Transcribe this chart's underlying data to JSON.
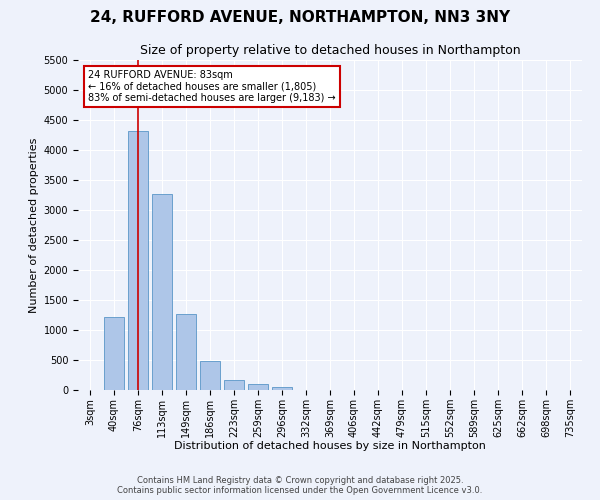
{
  "title": "24, RUFFORD AVENUE, NORTHAMPTON, NN3 3NY",
  "subtitle": "Size of property relative to detached houses in Northampton",
  "xlabel": "Distribution of detached houses by size in Northampton",
  "ylabel": "Number of detached properties",
  "categories": [
    "3sqm",
    "40sqm",
    "76sqm",
    "113sqm",
    "149sqm",
    "186sqm",
    "223sqm",
    "259sqm",
    "296sqm",
    "332sqm",
    "369sqm",
    "406sqm",
    "442sqm",
    "479sqm",
    "515sqm",
    "552sqm",
    "589sqm",
    "625sqm",
    "662sqm",
    "698sqm",
    "735sqm"
  ],
  "values": [
    0,
    1220,
    4310,
    3270,
    1260,
    490,
    175,
    95,
    55,
    0,
    0,
    0,
    0,
    0,
    0,
    0,
    0,
    0,
    0,
    0,
    0
  ],
  "bar_color": "#aec6e8",
  "bar_edge_color": "#5a96c8",
  "vline_x": 2,
  "vline_color": "#cc0000",
  "annotation_text": "24 RUFFORD AVENUE: 83sqm\n← 16% of detached houses are smaller (1,805)\n83% of semi-detached houses are larger (9,183) →",
  "annotation_box_color": "#ffffff",
  "annotation_box_edge": "#cc0000",
  "ylim": [
    0,
    5500
  ],
  "yticks": [
    0,
    500,
    1000,
    1500,
    2000,
    2500,
    3000,
    3500,
    4000,
    4500,
    5000,
    5500
  ],
  "footer_line1": "Contains HM Land Registry data © Crown copyright and database right 2025.",
  "footer_line2": "Contains public sector information licensed under the Open Government Licence v3.0.",
  "bg_color": "#eef2fb",
  "plot_bg_color": "#eef2fb",
  "title_fontsize": 11,
  "subtitle_fontsize": 9,
  "axis_label_fontsize": 8,
  "tick_fontsize": 7,
  "footer_fontsize": 6
}
